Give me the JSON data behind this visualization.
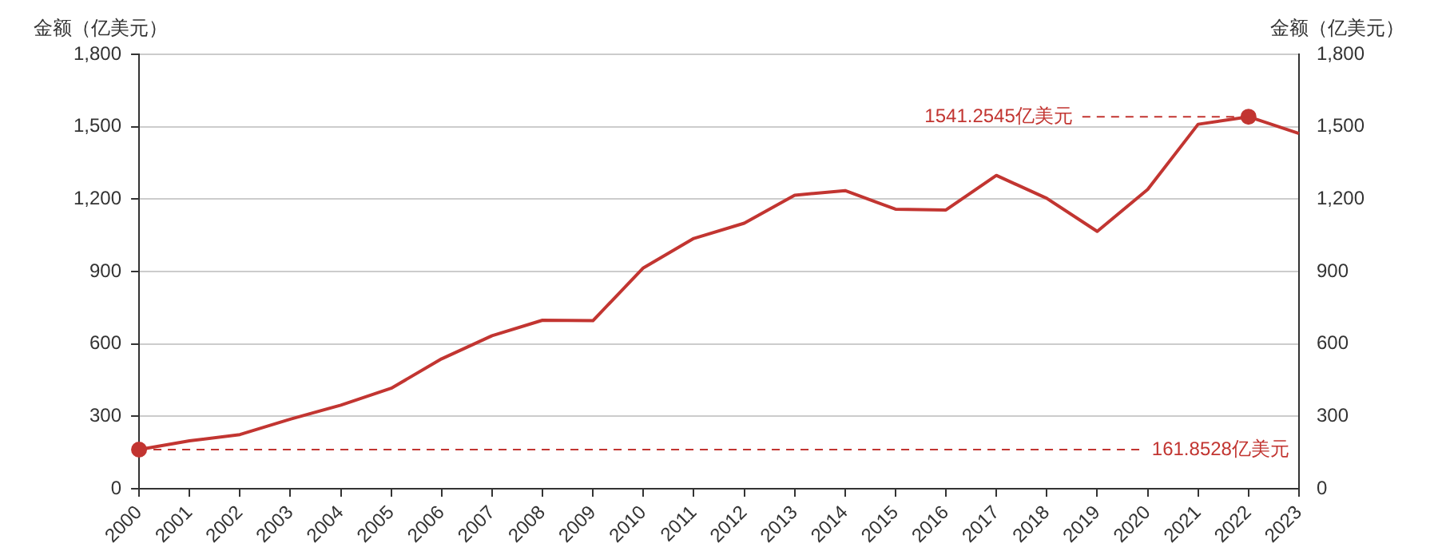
{
  "chart_data": {
    "type": "line",
    "ylabel": "金额（亿美元）",
    "y2label": "金额（亿美元）",
    "categories": [
      "2000",
      "2001",
      "2002",
      "2003",
      "2004",
      "2005",
      "2006",
      "2007",
      "2008",
      "2009",
      "2010",
      "2011",
      "2012",
      "2013",
      "2014",
      "2015",
      "2016",
      "2017",
      "2018",
      "2019",
      "2020",
      "2021",
      "2022",
      "2023"
    ],
    "series": [
      {
        "color": "#c23531",
        "values": [
          161.8528,
          198,
          224,
          288,
          346,
          416,
          538,
          634,
          698,
          696,
          915,
          1037,
          1100,
          1216,
          1235,
          1158,
          1155,
          1298,
          1203,
          1066,
          1240,
          1510,
          1541.2545,
          1472
        ]
      }
    ],
    "ylim": [
      0,
      1800
    ],
    "yticks": [
      {
        "value": 0,
        "label": "0"
      },
      {
        "value": 300,
        "label": "300"
      },
      {
        "value": 600,
        "label": "600"
      },
      {
        "value": 900,
        "label": "900"
      },
      {
        "value": 1200,
        "label": "1,200"
      },
      {
        "value": 1500,
        "label": "1,500"
      },
      {
        "value": 1800,
        "label": "1,800"
      }
    ],
    "y2lim": [
      0,
      1800
    ],
    "y2ticks": [
      {
        "value": 0,
        "label": "0"
      },
      {
        "value": 300,
        "label": "300"
      },
      {
        "value": 600,
        "label": "600"
      },
      {
        "value": 900,
        "label": "900"
      },
      {
        "value": 1200,
        "label": "1,200"
      },
      {
        "value": 1500,
        "label": "1,500"
      },
      {
        "value": 1800,
        "label": "1,800"
      }
    ],
    "ref_lines": [
      {
        "axis": "y",
        "value": 1541.2545,
        "label": "1541.2545亿美元",
        "color": "#c23531",
        "line_style": "dashed"
      },
      {
        "axis": "y",
        "value": 161.8528,
        "label": "161.8528亿美元",
        "color": "#c23531",
        "line_style": "dashed"
      }
    ],
    "grid": "y",
    "legend": false,
    "marker": "none",
    "line_style": "solid"
  }
}
